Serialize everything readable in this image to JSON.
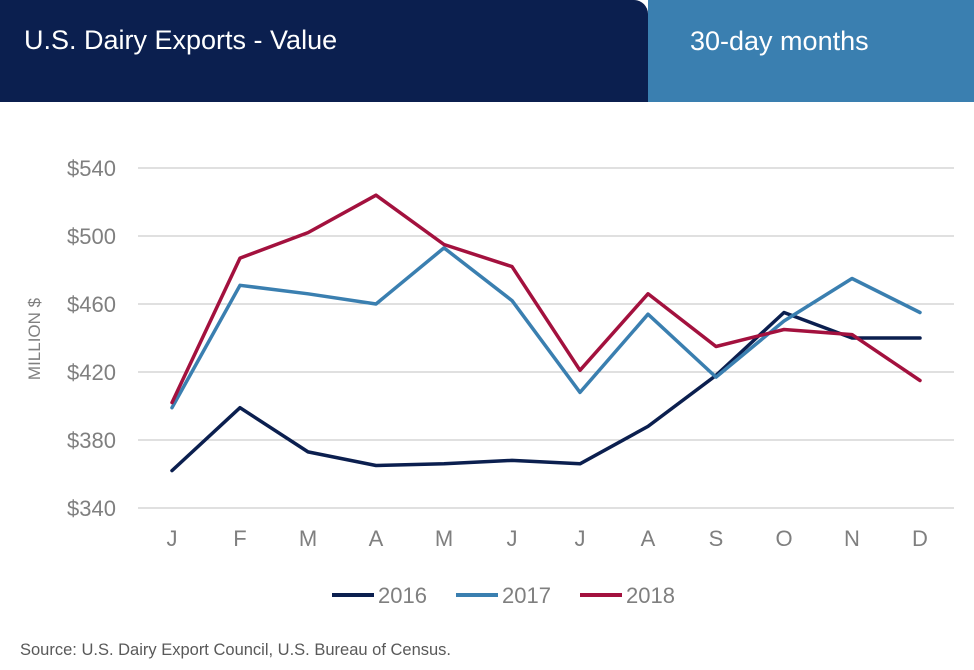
{
  "header": {
    "title": "U.S. Dairy Exports - Value",
    "subtitle": "30-day months"
  },
  "source": "Source: U.S. Dairy Export Council, U.S. Bureau of Census.",
  "colors": {
    "header_dark": "#0b1f4f",
    "header_light": "#3a7fb0",
    "grid": "#c0c0c0",
    "axis_text": "#7f7f7f"
  },
  "chart_data": {
    "type": "line",
    "title": "U.S. Dairy Exports - Value",
    "ylabel": "MILLION $",
    "xlabel": "",
    "categories": [
      "J",
      "F",
      "M",
      "A",
      "M",
      "J",
      "J",
      "A",
      "S",
      "O",
      "N",
      "D"
    ],
    "ylim": [
      340,
      540
    ],
    "yticks": [
      340,
      380,
      420,
      460,
      500,
      540
    ],
    "ytick_labels": [
      "$340",
      "$380",
      "$420",
      "$460",
      "$500",
      "$540"
    ],
    "grid": true,
    "legend_position": "bottom",
    "series": [
      {
        "name": "2016",
        "color": "#0b1f4f",
        "values": [
          362,
          399,
          373,
          365,
          366,
          368,
          366,
          388,
          418,
          455,
          440,
          440
        ]
      },
      {
        "name": "2017",
        "color": "#3a7fb0",
        "values": [
          399,
          471,
          466,
          460,
          493,
          462,
          408,
          454,
          417,
          450,
          475,
          455
        ]
      },
      {
        "name": "2018",
        "color": "#a3113e",
        "values": [
          402,
          487,
          502,
          524,
          495,
          482,
          421,
          466,
          435,
          445,
          442,
          415
        ]
      }
    ]
  }
}
